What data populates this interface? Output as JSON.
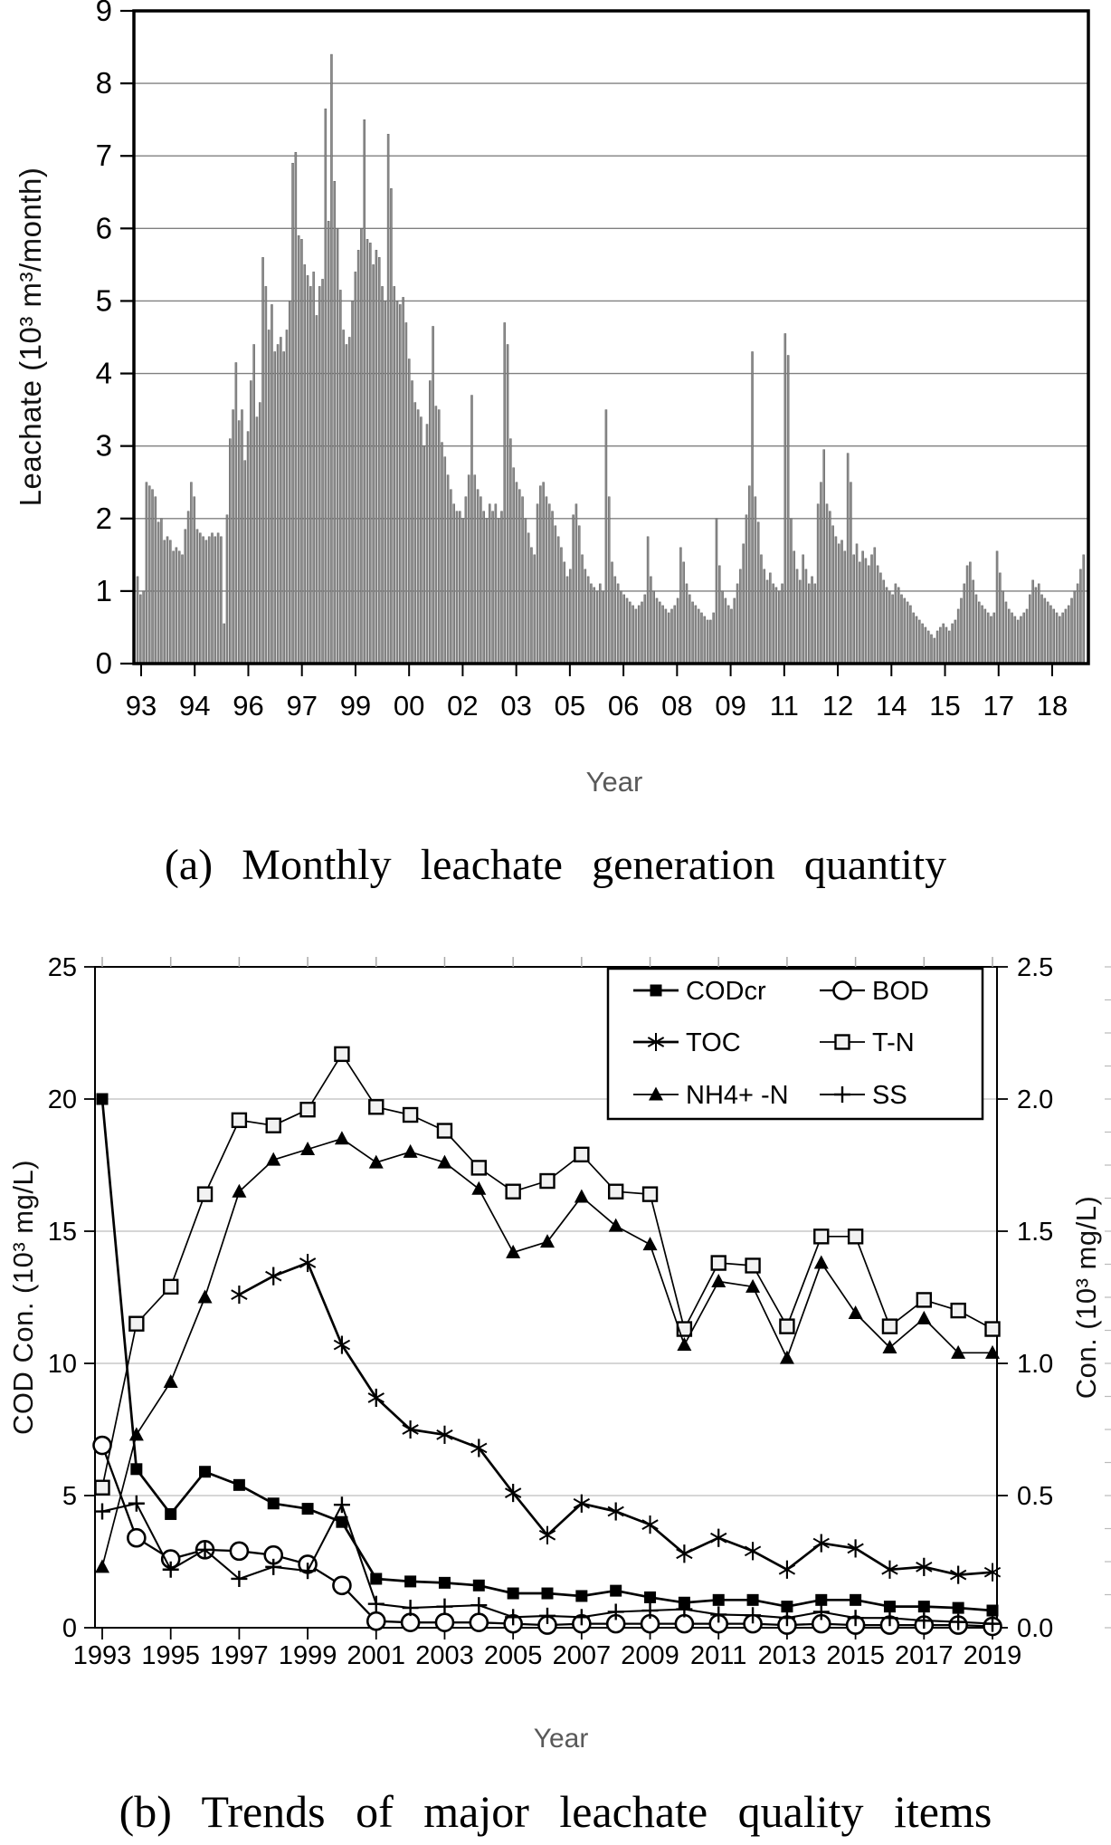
{
  "figure": {
    "caption_a": "(a) Monthly leachate generation quantity",
    "caption_b": "(b) Trends of major leachate quality items",
    "background": "#ffffff",
    "text_color": "#000000",
    "axis_label_color": "#595959"
  },
  "chart_data": [
    {
      "id": "monthly-leachate-generation",
      "type": "bar",
      "title": "",
      "ylabel": "Leachate (10³ m³/month)",
      "xlabel": "Year",
      "ylim": [
        0,
        9
      ],
      "yticks": [
        0,
        1,
        2,
        3,
        4,
        5,
        6,
        7,
        8,
        9
      ],
      "grid": "horizontal",
      "grid_color": "#808080",
      "bar_color": "#8c8c8c",
      "bar_edge_color": "#5f5f5f",
      "x_start_year": 1993,
      "points_per_year": 12,
      "xtick_labels": [
        "93",
        "94",
        "96",
        "97",
        "99",
        "00",
        "02",
        "03",
        "05",
        "06",
        "08",
        "09",
        "11",
        "12",
        "14",
        "15",
        "17",
        "18"
      ],
      "xtick_year_step": 1.5,
      "values": [
        1.2,
        0.95,
        1.0,
        2.5,
        2.45,
        2.4,
        2.3,
        1.95,
        2.0,
        1.7,
        1.75,
        1.7,
        1.55,
        1.6,
        1.55,
        1.5,
        1.85,
        2.1,
        2.5,
        2.3,
        1.85,
        1.8,
        1.75,
        1.7,
        1.75,
        1.8,
        1.75,
        1.8,
        1.75,
        0.55,
        2.05,
        3.1,
        3.5,
        4.15,
        3.35,
        3.5,
        2.8,
        3.2,
        3.9,
        4.4,
        3.4,
        3.6,
        5.6,
        5.2,
        4.6,
        4.95,
        4.3,
        4.4,
        4.5,
        4.3,
        4.6,
        5.0,
        6.9,
        7.05,
        5.9,
        5.85,
        5.5,
        5.35,
        5.2,
        5.4,
        4.8,
        5.2,
        5.3,
        7.65,
        6.1,
        8.4,
        6.65,
        6.0,
        5.15,
        4.6,
        4.4,
        4.5,
        5.0,
        5.4,
        5.7,
        6.0,
        7.5,
        5.85,
        5.8,
        5.5,
        5.7,
        5.6,
        5.2,
        5.0,
        7.3,
        6.55,
        5.2,
        5.0,
        4.95,
        5.05,
        4.7,
        4.2,
        3.9,
        3.6,
        3.5,
        3.4,
        3.0,
        3.3,
        3.9,
        4.65,
        3.55,
        3.5,
        3.05,
        2.85,
        2.6,
        2.4,
        2.2,
        2.1,
        2.1,
        2.0,
        2.3,
        2.6,
        3.7,
        2.6,
        2.4,
        2.3,
        2.1,
        2.0,
        2.2,
        2.1,
        2.2,
        2.0,
        2.1,
        4.7,
        4.4,
        3.1,
        2.7,
        2.5,
        2.4,
        2.3,
        2.0,
        1.8,
        1.6,
        1.5,
        2.2,
        2.45,
        2.5,
        2.3,
        2.2,
        2.1,
        1.9,
        1.75,
        1.6,
        1.4,
        1.2,
        1.3,
        2.05,
        2.2,
        1.9,
        1.5,
        1.3,
        1.2,
        1.1,
        1.05,
        1.0,
        1.1,
        1.0,
        3.5,
        2.3,
        1.4,
        1.2,
        1.1,
        1.0,
        0.95,
        0.9,
        0.85,
        0.8,
        0.75,
        0.8,
        0.85,
        0.95,
        1.75,
        1.2,
        1.0,
        0.9,
        0.85,
        0.8,
        0.75,
        0.7,
        0.75,
        0.8,
        0.9,
        1.6,
        1.4,
        1.1,
        0.95,
        0.85,
        0.8,
        0.75,
        0.7,
        0.65,
        0.6,
        0.6,
        0.7,
        2.0,
        1.35,
        1.0,
        0.9,
        0.8,
        0.75,
        0.9,
        1.1,
        1.3,
        1.65,
        2.05,
        2.45,
        4.3,
        2.3,
        1.95,
        1.5,
        1.3,
        1.15,
        1.25,
        1.1,
        1.05,
        1.0,
        1.1,
        4.55,
        4.25,
        2.0,
        1.55,
        1.3,
        1.15,
        1.5,
        1.3,
        1.1,
        1.2,
        1.1,
        2.2,
        2.5,
        2.95,
        2.2,
        2.1,
        1.9,
        1.75,
        1.65,
        1.7,
        1.55,
        2.9,
        2.5,
        1.5,
        1.65,
        1.4,
        1.55,
        1.45,
        1.35,
        1.5,
        1.6,
        1.35,
        1.25,
        1.15,
        1.05,
        1.0,
        0.95,
        1.1,
        1.05,
        0.95,
        0.9,
        0.85,
        0.8,
        0.7,
        0.65,
        0.6,
        0.55,
        0.5,
        0.45,
        0.4,
        0.35,
        0.45,
        0.5,
        0.55,
        0.5,
        0.45,
        0.55,
        0.6,
        0.75,
        0.9,
        1.1,
        1.35,
        1.4,
        1.15,
        0.95,
        0.85,
        0.8,
        0.75,
        0.7,
        0.65,
        0.7,
        1.55,
        1.25,
        1.0,
        0.85,
        0.75,
        0.7,
        0.65,
        0.6,
        0.65,
        0.7,
        0.75,
        0.95,
        1.15,
        1.05,
        1.1,
        0.95,
        0.9,
        0.85,
        0.8,
        0.75,
        0.7,
        0.65,
        0.7,
        0.75,
        0.8,
        0.9,
        1.0,
        1.1,
        1.3,
        1.5
      ]
    },
    {
      "id": "leachate-quality-trends",
      "type": "line",
      "title": "",
      "ylabel_left": "COD Con. (10³ mg/L)",
      "ylabel_right": "Con. (10³ mg/L)",
      "xlabel": "Year",
      "ylim_left": [
        0,
        25
      ],
      "ylim_right": [
        0,
        2.5
      ],
      "ytick_labels_left": [
        "0",
        "5",
        "10",
        "15",
        "20",
        "25"
      ],
      "ytick_labels_right": [
        "0.0",
        "0.5",
        "1.0",
        "1.5",
        "2.0",
        "2.5"
      ],
      "grid": "horizontal",
      "grid_color": "#c9c9c9",
      "legend_position": "top-right",
      "xticks": [
        1993,
        1995,
        1997,
        1999,
        2001,
        2003,
        2005,
        2007,
        2009,
        2011,
        2013,
        2015,
        2017,
        2019
      ],
      "years": [
        1993,
        1994,
        1995,
        1996,
        1997,
        1998,
        1999,
        2000,
        2001,
        2002,
        2003,
        2004,
        2005,
        2006,
        2007,
        2008,
        2009,
        2010,
        2011,
        2012,
        2013,
        2014,
        2015,
        2016,
        2017,
        2018,
        2019
      ],
      "series": [
        {
          "name": "CODcr",
          "axis": "left",
          "marker": "filled-square",
          "values": [
            20.0,
            6.0,
            4.3,
            5.9,
            5.4,
            4.7,
            4.5,
            4.0,
            1.85,
            1.75,
            1.7,
            1.6,
            1.3,
            1.3,
            1.2,
            1.4,
            1.15,
            0.95,
            1.05,
            1.05,
            0.8,
            1.05,
            1.05,
            0.8,
            0.8,
            0.75,
            0.65
          ]
        },
        {
          "name": "BOD",
          "axis": "left",
          "marker": "open-circle",
          "values": [
            6.9,
            3.4,
            2.6,
            2.95,
            2.9,
            2.75,
            2.4,
            1.6,
            0.25,
            0.2,
            0.2,
            0.2,
            0.15,
            0.1,
            0.15,
            0.15,
            0.15,
            0.15,
            0.15,
            0.15,
            0.1,
            0.15,
            0.1,
            0.1,
            0.1,
            0.1,
            0.05
          ]
        },
        {
          "name": "TOC",
          "axis": "right",
          "marker": "asterisk",
          "values": [
            null,
            null,
            null,
            null,
            1.26,
            1.33,
            1.38,
            1.07,
            0.87,
            0.75,
            0.73,
            0.68,
            0.51,
            0.35,
            0.47,
            0.44,
            0.39,
            0.28,
            0.34,
            0.29,
            0.22,
            0.32,
            0.3,
            0.22,
            0.23,
            0.2,
            0.21
          ]
        },
        {
          "name": "T-N",
          "axis": "right",
          "marker": "open-square",
          "values": [
            0.53,
            1.15,
            1.29,
            1.64,
            1.92,
            1.9,
            1.96,
            2.17,
            1.97,
            1.94,
            1.88,
            1.74,
            1.65,
            1.69,
            1.79,
            1.65,
            1.64,
            1.13,
            1.38,
            1.37,
            1.14,
            1.48,
            1.48,
            1.14,
            1.24,
            1.2,
            1.13
          ]
        },
        {
          "name": "NH4+ -N",
          "axis": "right",
          "marker": "filled-triangle",
          "values": [
            0.23,
            0.73,
            0.93,
            1.25,
            1.65,
            1.77,
            1.81,
            1.85,
            1.76,
            1.8,
            1.76,
            1.66,
            1.42,
            1.46,
            1.63,
            1.52,
            1.45,
            1.07,
            1.31,
            1.29,
            1.02,
            1.38,
            1.19,
            1.06,
            1.17,
            1.04,
            1.04
          ]
        },
        {
          "name": "SS",
          "axis": "left",
          "marker": "plus",
          "values": [
            4.4,
            4.7,
            2.2,
            2.95,
            1.85,
            2.3,
            2.15,
            4.65,
            0.9,
            0.75,
            0.8,
            0.85,
            0.4,
            0.45,
            0.4,
            0.6,
            0.65,
            0.7,
            0.5,
            0.47,
            0.37,
            0.6,
            0.37,
            0.37,
            0.27,
            0.22,
            0.15
          ]
        }
      ]
    }
  ]
}
